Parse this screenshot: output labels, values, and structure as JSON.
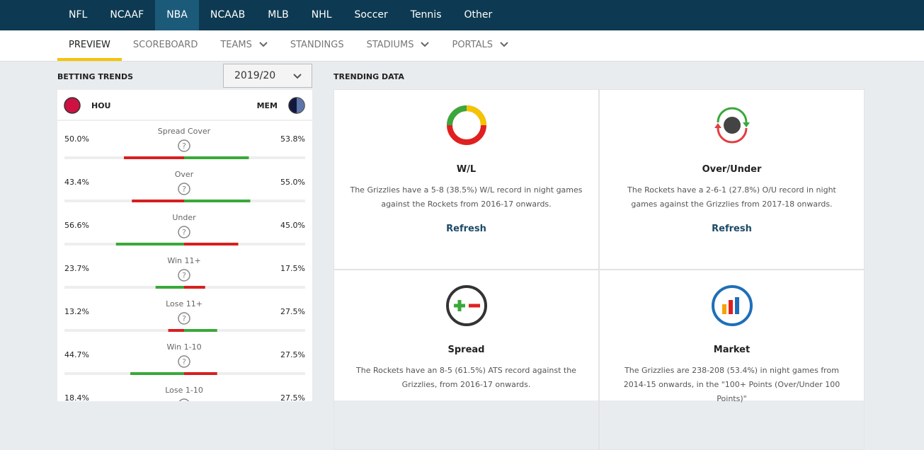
{
  "nav": {
    "items": [
      "NFL",
      "NCAAF",
      "NBA",
      "NCAAB",
      "MLB",
      "NHL",
      "Soccer",
      "Tennis",
      "Other"
    ],
    "active": "NBA"
  },
  "subnav": {
    "items": [
      "PREVIEW",
      "SCOREBOARD",
      "TEAMS",
      "STANDINGS",
      "STADIUMS",
      "PORTALS"
    ]
  },
  "betting_trends": {
    "title": "BETTING TRENDS",
    "season": "2019/20",
    "home": "HOU",
    "away": "MEM",
    "rows": [
      {
        "label": "Spread Cover",
        "hou": {
          "value": 50,
          "label": "50.0%"
        },
        "mem": {
          "value": 53.8,
          "label": "53.8%"
        }
      },
      {
        "label": "Over",
        "hou": {
          "value": 43.4,
          "label": "43.4%"
        },
        "mem": {
          "value": 55,
          "label": "55.0%"
        }
      },
      {
        "label": "Under",
        "hou": {
          "value": 56.6,
          "label": "56.6%"
        },
        "mem": {
          "value": 45,
          "label": "45.0%"
        }
      },
      {
        "label": "Win 11+",
        "hou": {
          "value": 23.7,
          "label": "23.7%"
        },
        "mem": {
          "value": 17.5,
          "label": "17.5%"
        }
      },
      {
        "label": "Lose 11+",
        "hou": {
          "value": 13.2,
          "label": "13.2%"
        },
        "mem": {
          "value": 27.5,
          "label": "27.5%"
        }
      },
      {
        "label": "Win 1-10",
        "hou": {
          "value": 44.7,
          "label": "44.7%"
        },
        "mem": {
          "value": 27.5,
          "label": "27.5%"
        }
      },
      {
        "label": "Lose 1-10",
        "hou": {
          "value": 18.4,
          "label": "18.4%"
        },
        "mem": {
          "value": 27.5,
          "label": "27.5%"
        }
      }
    ]
  },
  "trending_data": {
    "title": "TRENDING DATA",
    "cards": [
      {
        "title": "W/L",
        "text": "The Grizzlies have a 5-8 (38.5%) W/L record in night games against the Rockets from 2016-17 onwards.",
        "link": "Refresh"
      },
      {
        "title": "Over/Under",
        "text": "The Rockets have a 2-6-1 (27.8%) O/U record in night games against the Grizzlies from 2017-18 onwards.",
        "link": "Refresh"
      },
      {
        "title": "Spread",
        "text": "The Rockets have an 8-5 (61.5%) ATS record against the Grizzlies, from 2016-17 onwards."
      },
      {
        "title": "Market",
        "text": "The Grizzlies are 238-208 (53.4%) in night games from 2014-15 onwards, in the \"100+ Points (Over/Under 100 Points)\""
      }
    ]
  }
}
